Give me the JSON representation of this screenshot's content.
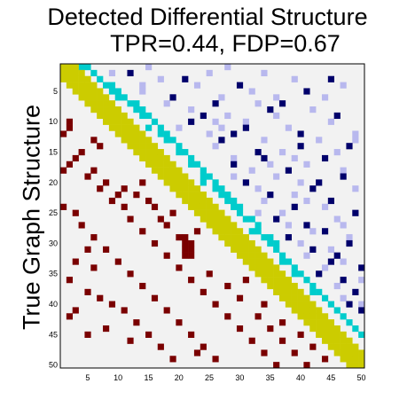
{
  "title": {
    "line1": "Detected Differential Structure",
    "line2": "TPR=0.44, FDP=0.67"
  },
  "ylabel": "True Graph Structure",
  "chart_data": {
    "type": "heatmap",
    "n": 50,
    "xticks": [
      5,
      10,
      15,
      20,
      25,
      30,
      35,
      40,
      45,
      50
    ],
    "yticks": [
      5,
      10,
      15,
      20,
      25,
      30,
      35,
      40,
      45,
      50
    ],
    "colors": {
      "background": "#f2f2f2",
      "diagonal": "#cccc00",
      "near_diagonal": "#00cccc",
      "upper_dark": "#00006b",
      "upper_light": "#b8b8ee",
      "lower_true": "#7a0000"
    },
    "diagonal_bandwidth": 2,
    "upper_near_diagonal": [
      [
        1,
        4
      ],
      [
        1,
        5
      ],
      [
        2,
        6
      ],
      [
        3,
        7
      ],
      [
        4,
        8
      ],
      [
        4,
        9
      ],
      [
        5,
        9
      ],
      [
        5,
        10
      ],
      [
        6,
        11
      ],
      [
        6,
        10
      ],
      [
        7,
        12
      ],
      [
        7,
        13
      ],
      [
        8,
        13
      ],
      [
        8,
        14
      ],
      [
        9,
        14
      ],
      [
        9,
        15
      ],
      [
        10,
        16
      ],
      [
        11,
        15
      ],
      [
        11,
        17
      ],
      [
        12,
        17
      ],
      [
        12,
        18
      ],
      [
        13,
        18
      ],
      [
        13,
        19
      ],
      [
        14,
        20
      ],
      [
        15,
        20
      ],
      [
        15,
        21
      ],
      [
        16,
        22
      ],
      [
        17,
        22
      ],
      [
        17,
        23
      ],
      [
        18,
        24
      ],
      [
        19,
        24
      ],
      [
        19,
        25
      ],
      [
        20,
        26
      ],
      [
        21,
        26
      ],
      [
        21,
        27
      ],
      [
        22,
        28
      ],
      [
        23,
        28
      ],
      [
        23,
        29
      ],
      [
        24,
        30
      ],
      [
        25,
        30
      ],
      [
        26,
        31
      ],
      [
        26,
        32
      ],
      [
        27,
        33
      ],
      [
        28,
        33
      ],
      [
        29,
        34
      ],
      [
        29,
        35
      ],
      [
        30,
        36
      ],
      [
        31,
        36
      ],
      [
        32,
        37
      ],
      [
        33,
        38
      ],
      [
        34,
        39
      ],
      [
        35,
        40
      ],
      [
        36,
        41
      ],
      [
        37,
        42
      ],
      [
        38,
        43
      ],
      [
        39,
        44
      ],
      [
        40,
        45
      ],
      [
        41,
        46
      ],
      [
        42,
        47
      ],
      [
        43,
        48
      ],
      [
        44,
        49
      ],
      [
        45,
        50
      ],
      [
        20,
        24
      ],
      [
        22,
        27
      ],
      [
        24,
        29
      ],
      [
        28,
        32
      ],
      [
        30,
        35
      ],
      [
        33,
        37
      ],
      [
        35,
        39
      ],
      [
        38,
        42
      ]
    ],
    "upper_dark": [
      [
        2,
        12
      ],
      [
        3,
        21
      ],
      [
        4,
        30
      ],
      [
        5,
        41
      ],
      [
        6,
        19
      ],
      [
        7,
        26
      ],
      [
        8,
        35
      ],
      [
        9,
        46
      ],
      [
        10,
        22
      ],
      [
        11,
        31
      ],
      [
        12,
        40
      ],
      [
        13,
        27
      ],
      [
        14,
        48
      ],
      [
        15,
        33
      ],
      [
        16,
        44
      ],
      [
        17,
        29
      ],
      [
        18,
        38
      ],
      [
        19,
        47
      ],
      [
        20,
        31
      ],
      [
        21,
        42
      ],
      [
        22,
        35
      ],
      [
        23,
        45
      ],
      [
        24,
        39
      ],
      [
        25,
        49
      ],
      [
        26,
        36
      ],
      [
        27,
        41
      ],
      [
        28,
        44
      ],
      [
        29,
        38
      ],
      [
        30,
        48
      ],
      [
        31,
        42
      ],
      [
        32,
        46
      ],
      [
        33,
        45
      ],
      [
        34,
        50
      ],
      [
        35,
        43
      ],
      [
        36,
        47
      ],
      [
        38,
        49
      ],
      [
        40,
        48
      ],
      [
        41,
        50
      ],
      [
        3,
        45
      ],
      [
        7,
        37
      ],
      [
        12,
        29
      ],
      [
        16,
        34
      ],
      [
        20,
        43
      ],
      [
        9,
        24
      ],
      [
        14,
        40
      ]
    ],
    "upper_light": [
      [
        1,
        15
      ],
      [
        1,
        28
      ],
      [
        2,
        34
      ],
      [
        3,
        17
      ],
      [
        3,
        39
      ],
      [
        4,
        23
      ],
      [
        4,
        47
      ],
      [
        5,
        14
      ],
      [
        5,
        32
      ],
      [
        6,
        27
      ],
      [
        6,
        44
      ],
      [
        7,
        18
      ],
      [
        7,
        33
      ],
      [
        8,
        22
      ],
      [
        8,
        42
      ],
      [
        9,
        28
      ],
      [
        9,
        36
      ],
      [
        10,
        31
      ],
      [
        10,
        45
      ],
      [
        11,
        20
      ],
      [
        11,
        38
      ],
      [
        12,
        25
      ],
      [
        12,
        49
      ],
      [
        13,
        34
      ],
      [
        13,
        43
      ],
      [
        14,
        26
      ],
      [
        15,
        37
      ],
      [
        15,
        46
      ],
      [
        16,
        29
      ],
      [
        17,
        41
      ],
      [
        18,
        32
      ],
      [
        18,
        47
      ],
      [
        19,
        36
      ],
      [
        20,
        40
      ],
      [
        21,
        33
      ],
      [
        21,
        49
      ],
      [
        22,
        39
      ],
      [
        23,
        34
      ],
      [
        24,
        44
      ],
      [
        25,
        37
      ],
      [
        26,
        46
      ],
      [
        27,
        38
      ],
      [
        28,
        42
      ],
      [
        29,
        48
      ],
      [
        31,
        45
      ],
      [
        32,
        41
      ],
      [
        33,
        47
      ],
      [
        34,
        44
      ],
      [
        36,
        50
      ],
      [
        37,
        46
      ],
      [
        39,
        47
      ],
      [
        2,
        9
      ],
      [
        2,
        25
      ],
      [
        4,
        14
      ],
      [
        6,
        36
      ],
      [
        10,
        26
      ],
      [
        13,
        49
      ],
      [
        17,
        35
      ],
      [
        19,
        29
      ],
      [
        23,
        41
      ],
      [
        27,
        47
      ],
      [
        30,
        40
      ],
      [
        40,
        50
      ],
      [
        11,
        27
      ],
      [
        16,
        39
      ],
      [
        25,
        33
      ]
    ],
    "lower_true": [
      [
        10,
        2
      ],
      [
        11,
        2
      ],
      [
        12,
        1
      ],
      [
        15,
        4
      ],
      [
        16,
        3
      ],
      [
        18,
        6
      ],
      [
        19,
        5
      ],
      [
        20,
        8
      ],
      [
        21,
        7
      ],
      [
        22,
        10
      ],
      [
        23,
        9
      ],
      [
        24,
        11
      ],
      [
        25,
        3
      ],
      [
        26,
        12
      ],
      [
        27,
        4
      ],
      [
        28,
        14
      ],
      [
        29,
        6
      ],
      [
        30,
        16
      ],
      [
        31,
        8
      ],
      [
        32,
        18
      ],
      [
        33,
        10
      ],
      [
        34,
        20
      ],
      [
        35,
        12
      ],
      [
        36,
        22
      ],
      [
        37,
        14
      ],
      [
        38,
        24
      ],
      [
        39,
        16
      ],
      [
        40,
        26
      ],
      [
        41,
        18
      ],
      [
        42,
        28
      ],
      [
        43,
        20
      ],
      [
        44,
        30
      ],
      [
        45,
        22
      ],
      [
        46,
        32
      ],
      [
        47,
        24
      ],
      [
        48,
        34
      ],
      [
        49,
        26
      ],
      [
        50,
        36
      ],
      [
        14,
        7
      ],
      [
        17,
        2
      ],
      [
        20,
        14
      ],
      [
        23,
        15
      ],
      [
        26,
        17
      ],
      [
        29,
        20
      ],
      [
        29,
        21
      ],
      [
        30,
        21
      ],
      [
        30,
        22
      ],
      [
        31,
        21
      ],
      [
        31,
        22
      ],
      [
        32,
        21
      ],
      [
        32,
        22
      ],
      [
        33,
        3
      ],
      [
        35,
        25
      ],
      [
        36,
        2
      ],
      [
        37,
        28
      ],
      [
        38,
        5
      ],
      [
        39,
        30
      ],
      [
        40,
        9
      ],
      [
        41,
        11
      ],
      [
        42,
        33
      ],
      [
        43,
        13
      ],
      [
        44,
        35
      ],
      [
        45,
        15
      ],
      [
        46,
        37
      ],
      [
        47,
        17
      ],
      [
        48,
        39
      ],
      [
        49,
        19
      ],
      [
        50,
        41
      ],
      [
        22,
        13
      ],
      [
        24,
        16
      ],
      [
        27,
        18
      ],
      [
        34,
        6
      ],
      [
        41,
        3
      ],
      [
        44,
        8
      ],
      [
        46,
        12
      ],
      [
        48,
        23
      ],
      [
        13,
        6
      ],
      [
        21,
        11
      ],
      [
        25,
        19
      ],
      [
        28,
        23
      ],
      [
        36,
        31
      ],
      [
        40,
        34
      ],
      [
        43,
        37
      ],
      [
        45,
        40
      ],
      [
        47,
        42
      ],
      [
        49,
        44
      ],
      [
        18,
        1
      ],
      [
        24,
        1
      ],
      [
        31,
        5
      ],
      [
        39,
        7
      ],
      [
        42,
        2
      ],
      [
        45,
        5
      ]
    ]
  }
}
